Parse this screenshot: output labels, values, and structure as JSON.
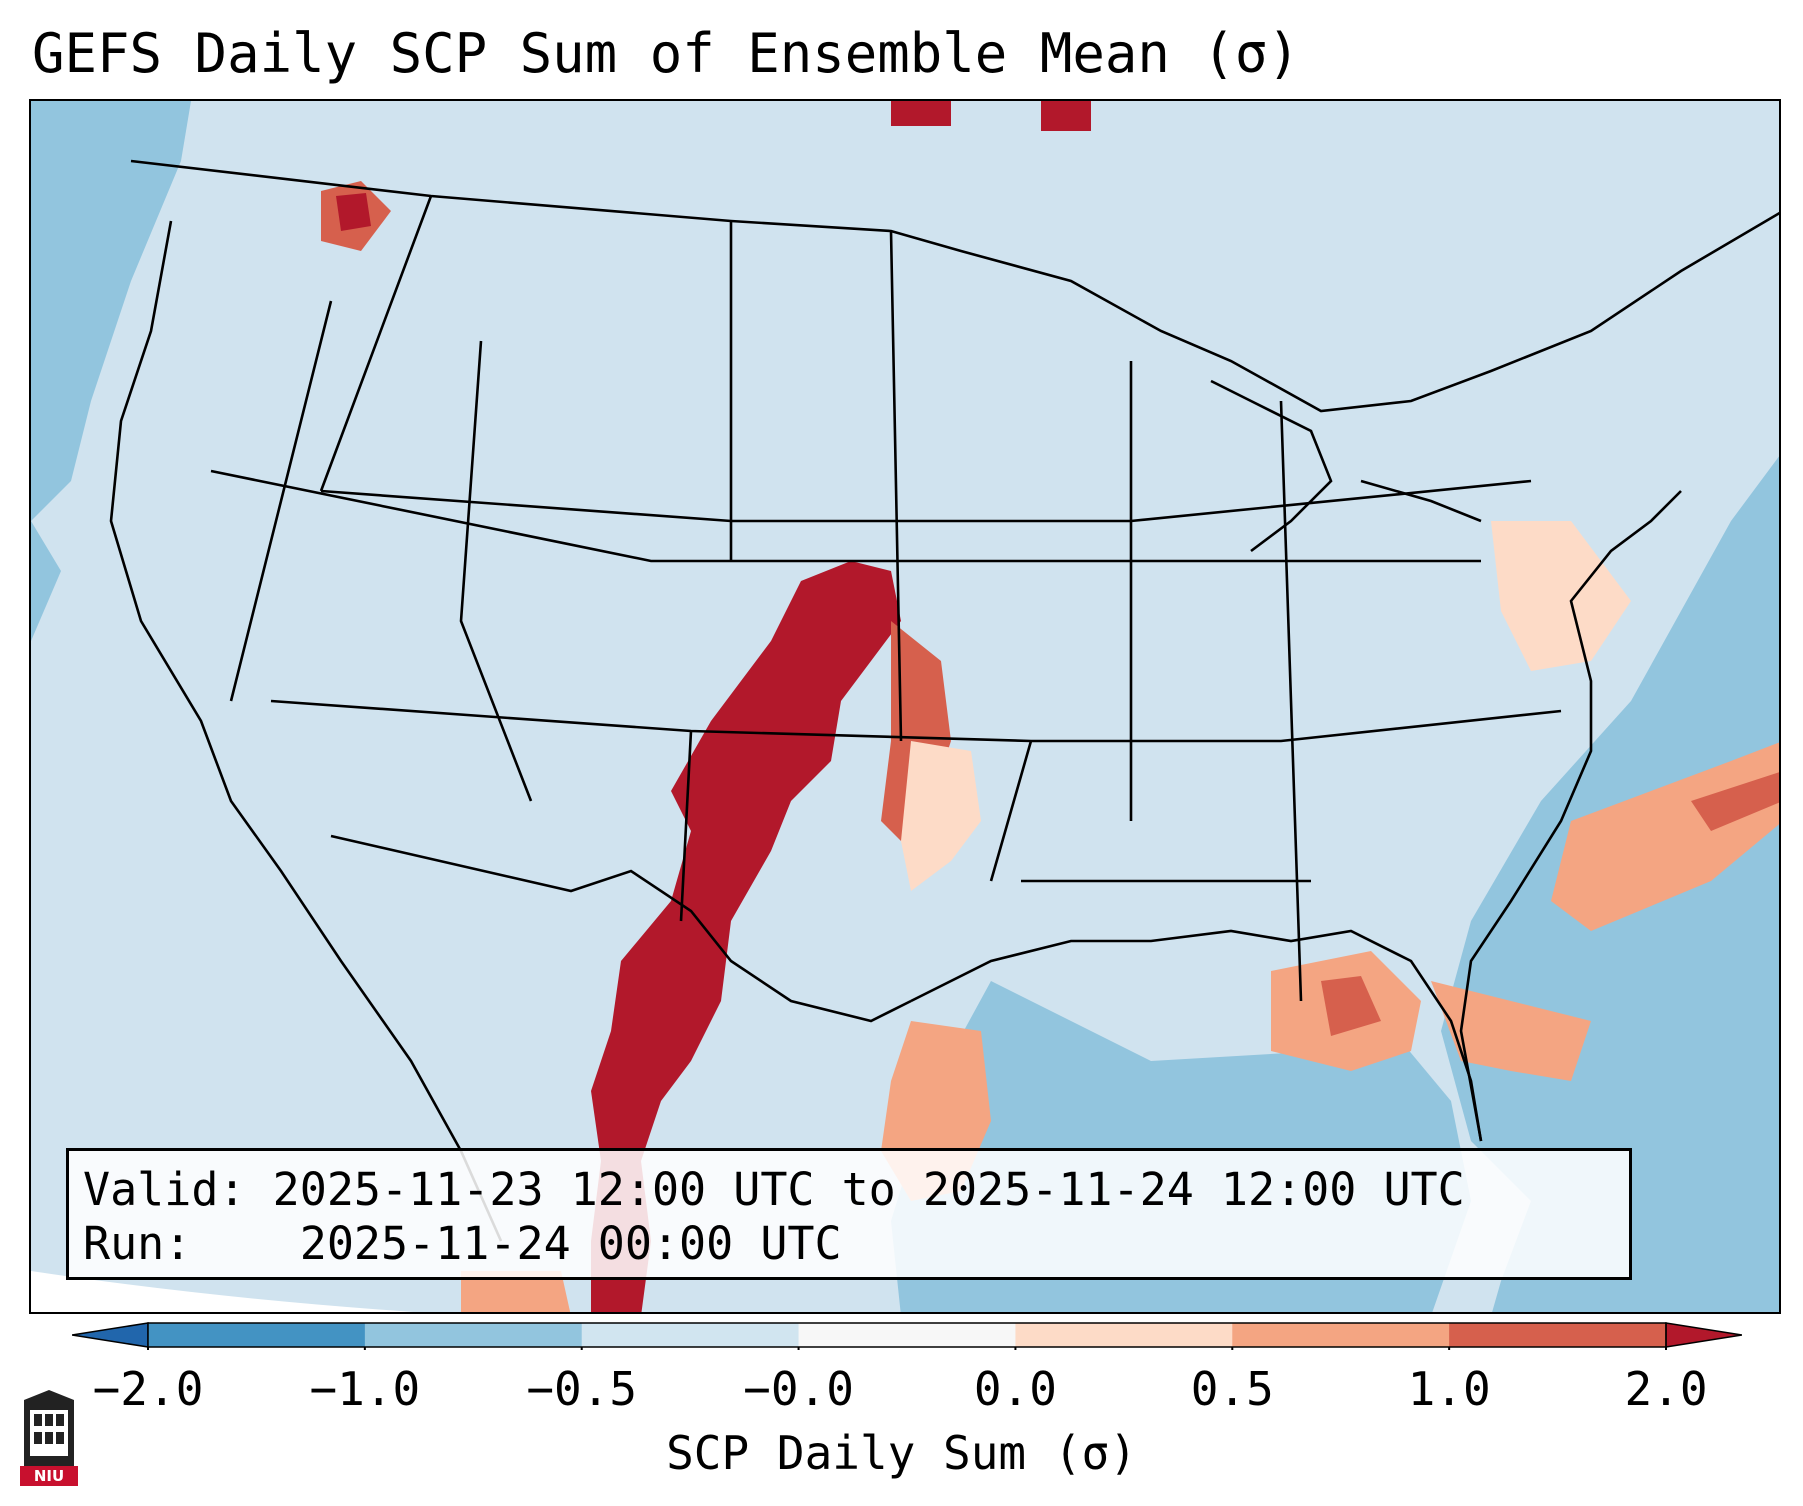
{
  "title": "GEFS Daily SCP Sum of Ensemble Mean (σ)",
  "info": {
    "valid_label": "Valid:",
    "valid_value": "2025-11-23 12:00 UTC to 2025-11-24 12:00 UTC",
    "run_label": "Run:",
    "run_value": "2025-11-24 00:00 UTC"
  },
  "colorbar": {
    "label": "SCP Daily Sum (σ)",
    "ticks": [
      "−2.0",
      "−1.0",
      "−0.5",
      "−0.0",
      "0.0",
      "0.5",
      "1.0",
      "2.0"
    ],
    "colors": [
      "#4393c3",
      "#92c5de",
      "#d1e5f0",
      "#f7f7f7",
      "#fddbc7",
      "#f4a582",
      "#d6604d"
    ],
    "extend_low_color": "#2166ac",
    "extend_high_color": "#b2182b"
  },
  "map": {
    "background_color": "#d1e5f0",
    "ocean_low_color": "#92c5de",
    "outside_color": "#ffffff",
    "line_color": "#000000"
  },
  "logo": {
    "text": "NIU",
    "color": "#c8102e"
  }
}
